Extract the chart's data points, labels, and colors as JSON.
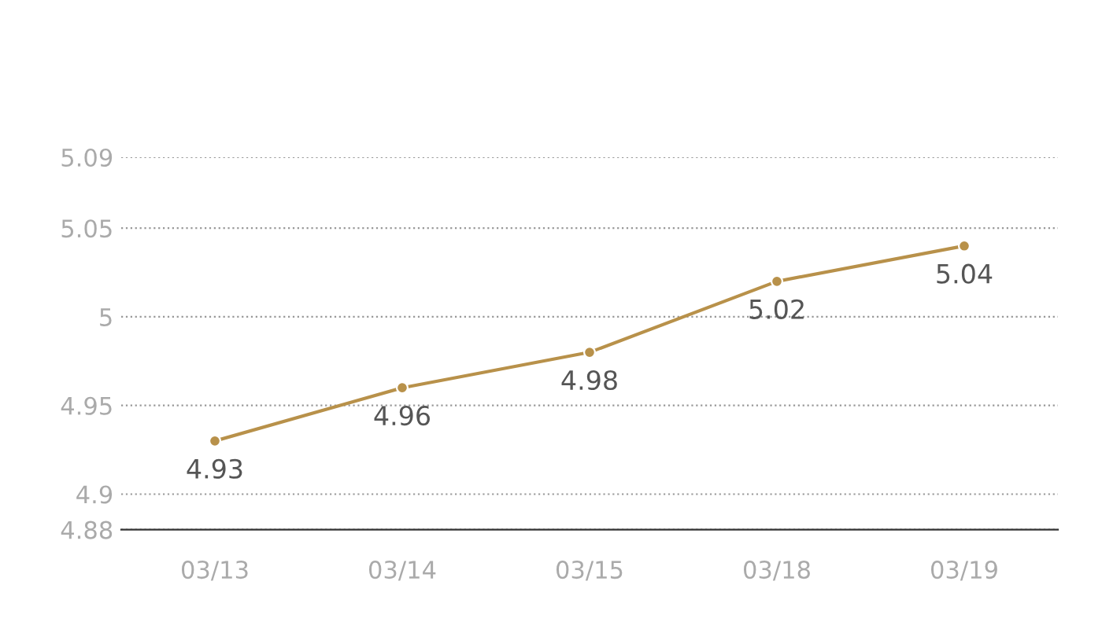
{
  "chart_data": {
    "type": "line",
    "categories": [
      "03/13",
      "03/14",
      "03/15",
      "03/18",
      "03/19"
    ],
    "series": [
      {
        "color": "#b8914a",
        "values": [
          4.93,
          4.96,
          4.98,
          5.02,
          5.04
        ]
      }
    ],
    "ylim": [
      4.88,
      5.09
    ],
    "yticks": [
      4.88,
      4.9,
      4.95,
      5,
      5.05,
      5.09
    ],
    "grid": "y",
    "marker": "circle",
    "line_style": "solid",
    "data_labels": true
  }
}
